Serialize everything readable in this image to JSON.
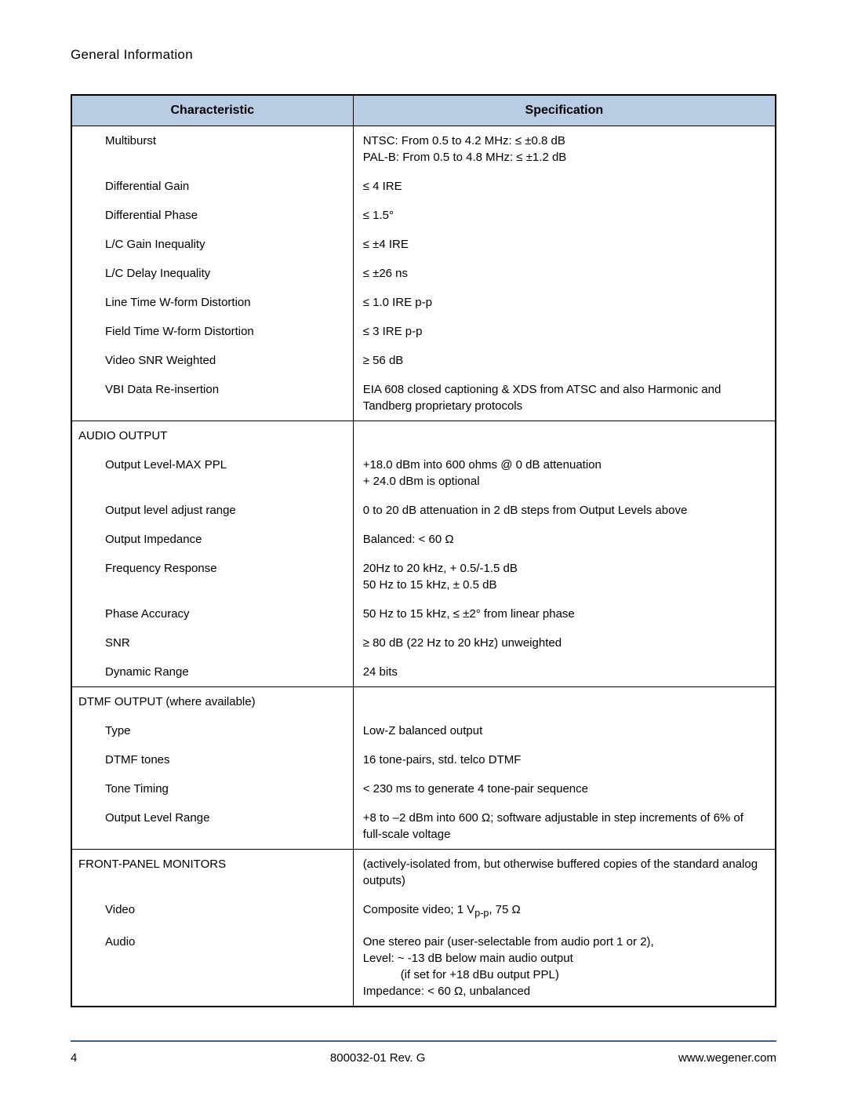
{
  "header": {
    "title": "General Information"
  },
  "table": {
    "columns": [
      "Characteristic",
      "Specification"
    ],
    "header_bg": "#b8cce4",
    "header_border": "#000000",
    "sections": [
      {
        "label": null,
        "rows": [
          {
            "char": "Multiburst",
            "spec": "NTSC: From 0.5 to 4.2 MHz: ≤ ±0.8 dB\nPAL-B: From 0.5 to 4.8 MHz: ≤ ±1.2 dB"
          },
          {
            "char": "Differential Gain",
            "spec": "≤ 4 IRE"
          },
          {
            "char": "Differential Phase",
            "spec": "≤ 1.5°"
          },
          {
            "char": "L/C Gain Inequality",
            "spec": "≤ ±4 IRE"
          },
          {
            "char": "L/C Delay Inequality",
            "spec": "≤ ±26 ns"
          },
          {
            "char": "Line Time W-form Distortion",
            "spec": "≤ 1.0 IRE p-p"
          },
          {
            "char": "Field Time W-form Distortion",
            "spec": "≤ 3 IRE p-p"
          },
          {
            "char": "Video SNR Weighted",
            "spec": "≥ 56 dB"
          },
          {
            "char": "VBI Data Re-insertion",
            "spec": "EIA 608 closed captioning & XDS from ATSC and also Harmonic and Tandberg proprietary protocols"
          }
        ]
      },
      {
        "label": "AUDIO OUTPUT",
        "label_spec": "",
        "rows": [
          {
            "char": "Output Level-MAX PPL",
            "spec": "+18.0 dBm into 600 ohms @ 0 dB attenuation\n+ 24.0 dBm is optional"
          },
          {
            "char": "Output level adjust range",
            "spec": "0 to 20 dB attenuation in 2 dB steps from Output Levels above"
          },
          {
            "char": "Output Impedance",
            "spec": "Balanced: < 60 Ω"
          },
          {
            "char": "Frequency Response",
            "spec": "20Hz to 20 kHz, + 0.5/-1.5 dB\n50 Hz to 15 kHz, ± 0.5 dB"
          },
          {
            "char": "Phase Accuracy",
            "spec": "50 Hz to 15 kHz, ≤ ±2° from linear phase"
          },
          {
            "char": "SNR",
            "spec": "≥ 80 dB (22 Hz to 20 kHz) unweighted"
          },
          {
            "char": "Dynamic Range",
            "spec": "24 bits"
          }
        ]
      },
      {
        "label": "DTMF OUTPUT (where available)",
        "label_spec": "",
        "rows": [
          {
            "char": "Type",
            "spec": "Low-Z balanced output"
          },
          {
            "char": "DTMF tones",
            "spec": "16 tone-pairs, std. telco DTMF"
          },
          {
            "char": "Tone Timing",
            "spec": "< 230 ms to generate 4 tone-pair sequence"
          },
          {
            "char": "Output Level Range",
            "spec": "+8 to –2 dBm into 600 Ω; software adjustable in step increments of 6% of full-scale voltage"
          }
        ]
      },
      {
        "label": "FRONT-PANEL MONITORS",
        "label_spec": "(actively-isolated from, but otherwise buffered copies of the standard analog outputs)",
        "rows": [
          {
            "char": "Video",
            "spec_html": "Composite video; 1 V<sub>p-p</sub>, 75 Ω"
          },
          {
            "char": "Audio",
            "spec_lines": [
              "One stereo pair (user-selectable from audio port 1 or 2),",
              "Level: ~ -13 dB below main audio output",
              {
                "indent": true,
                "text": "(if set for +18 dBu output PPL)"
              },
              "Impedance: < 60 Ω, unbalanced"
            ]
          }
        ]
      }
    ]
  },
  "footer": {
    "page_number": "4",
    "doc_rev": "800032-01 Rev. G",
    "url": "www.wegener.com",
    "divider_color": "#3a5da8"
  }
}
